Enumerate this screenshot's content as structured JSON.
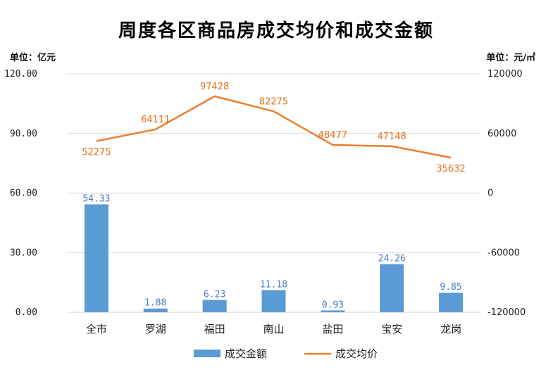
{
  "chart_data": {
    "type": "bar",
    "title": "周度各区商品房成交均价和成交金额",
    "left_unit": "单位：亿元",
    "right_unit": "单位：元/㎡",
    "categories": [
      "全市",
      "罗湖",
      "福田",
      "南山",
      "盐田",
      "宝安",
      "龙岗"
    ],
    "ylim": [
      0,
      120
    ],
    "y_ticks": [
      "120.00",
      "90.00",
      "60.00",
      "30.00",
      "0.00"
    ],
    "y2lim": [
      -120000,
      120000
    ],
    "y2_ticks": [
      "120000",
      "60000",
      "0",
      "-60000",
      "-120000"
    ],
    "grid": true,
    "legend_position": "bottom",
    "series": [
      {
        "name": "成交金额",
        "kind": "bar",
        "axis": "left",
        "color": "#5b9bd5",
        "values": [
          54.33,
          1.88,
          6.23,
          11.18,
          0.93,
          24.26,
          9.85
        ],
        "labels": [
          "54.33",
          "1.88",
          "6.23",
          "11.18",
          "0.93",
          "24.26",
          "9.85"
        ]
      },
      {
        "name": "成交均价",
        "kind": "line",
        "axis": "right",
        "color": "#ed7d31",
        "values": [
          52275,
          64111,
          97428,
          82275,
          48477,
          47148,
          35632
        ],
        "labels": [
          "52275",
          "64111",
          "97428",
          "82275",
          "48477",
          "47148",
          "35632"
        ]
      }
    ]
  }
}
